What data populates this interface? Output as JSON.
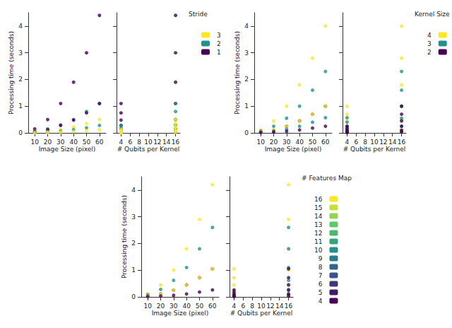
{
  "chart_data": [
    {
      "type": "scatter",
      "marker": "circle",
      "grid": false,
      "xlabel": "Image Size",
      "xunit": "(pixel)",
      "ylabel": "Processing time",
      "yunit": "(seconds)",
      "zlabel": "# Qubits per Kernel",
      "x": [
        10,
        20,
        30,
        40,
        50,
        60
      ],
      "xlim": [
        5,
        65
      ],
      "xticks": [
        10,
        20,
        30,
        40,
        50,
        60
      ],
      "ylim": [
        0,
        4.5
      ],
      "yticks": [
        0,
        1,
        2,
        3,
        4
      ],
      "zlim": [
        3,
        17
      ],
      "zticks": [
        4,
        6,
        8,
        10,
        12,
        14,
        16
      ],
      "colorbar": {
        "label": "Stride",
        "ticks": [
          1,
          2,
          3
        ]
      },
      "series": [
        {
          "qubits": 16,
          "color_value": 1,
          "values": [
            0.15,
            0.5,
            1.1,
            1.9,
            3.0,
            4.4
          ]
        },
        {
          "qubits": 16,
          "color_value": 2,
          "values": [
            0.05,
            0.15,
            0.3,
            0.5,
            0.8,
            1.1
          ]
        },
        {
          "qubits": 16,
          "color_value": 3,
          "values": [
            0.03,
            0.07,
            0.13,
            0.22,
            0.35,
            0.5
          ]
        },
        {
          "qubits": 4,
          "color_value": 1,
          "values": [
            0.04,
            0.12,
            0.28,
            0.48,
            0.75,
            1.1
          ]
        },
        {
          "qubits": 4,
          "color_value": 2,
          "values": [
            0.01,
            0.04,
            0.07,
            0.12,
            0.19,
            0.28
          ]
        },
        {
          "qubits": 4,
          "color_value": 3,
          "values": [
            0.01,
            0.02,
            0.03,
            0.05,
            0.08,
            0.12
          ]
        }
      ]
    },
    {
      "type": "scatter",
      "marker": "circle",
      "grid": false,
      "xlabel": "Image Size",
      "xunit": "(pixel)",
      "ylabel": "Processing time",
      "yunit": "(seconds)",
      "zlabel": "# Qubits per Kernel",
      "x": [
        10,
        20,
        30,
        40,
        50,
        60
      ],
      "xlim": [
        5,
        65
      ],
      "xticks": [
        10,
        20,
        30,
        40,
        50,
        60
      ],
      "ylim": [
        0,
        4.5
      ],
      "yticks": [
        0,
        1,
        2,
        3,
        4
      ],
      "zlim": [
        3,
        17
      ],
      "zticks": [
        4,
        6,
        8,
        10,
        12,
        14,
        16
      ],
      "colorbar": {
        "label": "Kernel Size",
        "ticks": [
          2,
          3,
          4
        ]
      },
      "series": [
        {
          "qubits": 16,
          "color_value": 4,
          "values": [
            0.12,
            0.45,
            1.0,
            1.8,
            2.8,
            4.0
          ]
        },
        {
          "qubits": 16,
          "color_value": 3,
          "values": [
            0.07,
            0.25,
            0.55,
            1.0,
            1.6,
            2.3
          ]
        },
        {
          "qubits": 16,
          "color_value": 2,
          "values": [
            0.03,
            0.1,
            0.25,
            0.45,
            0.7,
            1.0
          ]
        },
        {
          "qubits": 4,
          "color_value": 4,
          "values": [
            0.03,
            0.11,
            0.25,
            0.45,
            0.7,
            1.0
          ]
        },
        {
          "qubits": 4,
          "color_value": 3,
          "values": [
            0.02,
            0.06,
            0.14,
            0.25,
            0.4,
            0.57
          ]
        },
        {
          "qubits": 4,
          "color_value": 2,
          "values": [
            0.01,
            0.03,
            0.06,
            0.11,
            0.18,
            0.25
          ]
        }
      ]
    },
    {
      "type": "scatter",
      "marker": "circle",
      "grid": false,
      "xlabel": "Image Size",
      "xunit": "(pixel)",
      "ylabel": "Processing time",
      "yunit": "(seconds)",
      "zlabel": "# Qubits per Kernel",
      "x": [
        10,
        20,
        30,
        40,
        50,
        60
      ],
      "xlim": [
        5,
        65
      ],
      "xticks": [
        10,
        20,
        30,
        40,
        50,
        60
      ],
      "ylim": [
        0,
        4.5
      ],
      "yticks": [
        0,
        1,
        2,
        3,
        4
      ],
      "zlim": [
        3,
        17
      ],
      "zticks": [
        4,
        6,
        8,
        10,
        12,
        14,
        16
      ],
      "colorbar": {
        "label": "# Features Map",
        "ticks": [
          4,
          5,
          6,
          7,
          8,
          9,
          10,
          11,
          12,
          13,
          14,
          15,
          16
        ]
      },
      "series": [
        {
          "qubits": 16,
          "color_value": 16,
          "values": [
            0.12,
            0.45,
            1.0,
            1.8,
            2.9,
            4.2
          ]
        },
        {
          "qubits": 16,
          "color_value": 10,
          "values": [
            0.08,
            0.28,
            0.62,
            1.1,
            1.8,
            2.6
          ]
        },
        {
          "qubits": 16,
          "color_value": 4,
          "values": [
            0.03,
            0.11,
            0.25,
            0.45,
            0.72,
            1.05
          ]
        },
        {
          "qubits": 4,
          "color_value": 16,
          "values": [
            0.03,
            0.11,
            0.25,
            0.45,
            0.72,
            1.05
          ]
        },
        {
          "qubits": 4,
          "color_value": 4,
          "values": [
            0.01,
            0.03,
            0.06,
            0.11,
            0.18,
            0.26
          ]
        }
      ]
    }
  ]
}
